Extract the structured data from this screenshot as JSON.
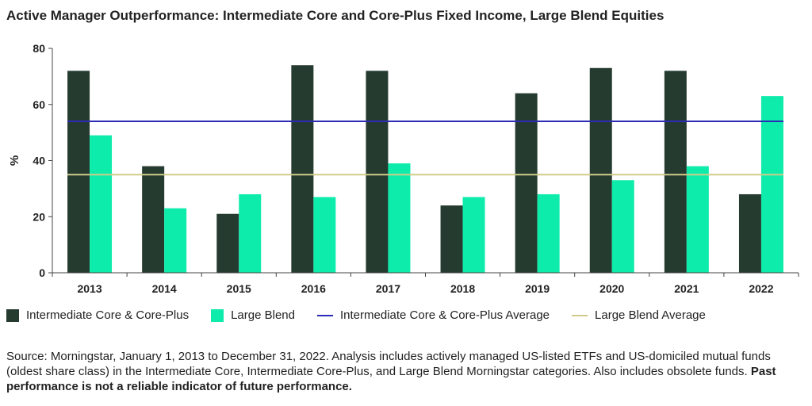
{
  "title": "Active Manager Outperformance: Intermediate Core and Core-Plus Fixed Income, Large Blend Equities",
  "chart_data": {
    "type": "bar",
    "categories": [
      "2013",
      "2014",
      "2015",
      "2016",
      "2017",
      "2018",
      "2019",
      "2020",
      "2021",
      "2022"
    ],
    "series": [
      {
        "name": "Intermediate Core & Core-Plus",
        "values": [
          72,
          38,
          21,
          74,
          72,
          24,
          64,
          73,
          72,
          28
        ],
        "color": "#263b30"
      },
      {
        "name": "Large Blend",
        "values": [
          49,
          23,
          28,
          27,
          39,
          27,
          28,
          33,
          38,
          63
        ],
        "color": "#0eecab"
      }
    ],
    "reference_lines": [
      {
        "name": "Intermediate Core & Core-Plus Average",
        "value": 54,
        "color": "#2b2bb5"
      },
      {
        "name": "Large Blend Average",
        "value": 35,
        "color": "#cfcb8a"
      }
    ],
    "ylabel": "%",
    "xlabel": "",
    "ylim": [
      0,
      80
    ],
    "yticks": [
      0,
      20,
      40,
      60,
      80
    ],
    "grid": false,
    "legend_position": "bottom"
  },
  "legend": {
    "items": [
      {
        "label": "Intermediate Core & Core-Plus",
        "kind": "box",
        "color": "#263b30"
      },
      {
        "label": "Large Blend",
        "kind": "box",
        "color": "#0eecab"
      },
      {
        "label": "Intermediate Core & Core-Plus Average",
        "kind": "line",
        "color": "#2b2bb5"
      },
      {
        "label": "Large Blend Average",
        "kind": "line",
        "color": "#cfcb8a"
      }
    ]
  },
  "source": {
    "text": "Source: Morningstar, January 1, 2013 to December 31, 2022. Analysis includes actively managed US-listed ETFs and US-domiciled mutual funds (oldest share class) in the Intermediate Core, Intermediate Core-Plus, and Large Blend Morningstar categories. Also includes obsolete funds.",
    "bold": "Past performance is not a reliable indicator of future performance."
  }
}
